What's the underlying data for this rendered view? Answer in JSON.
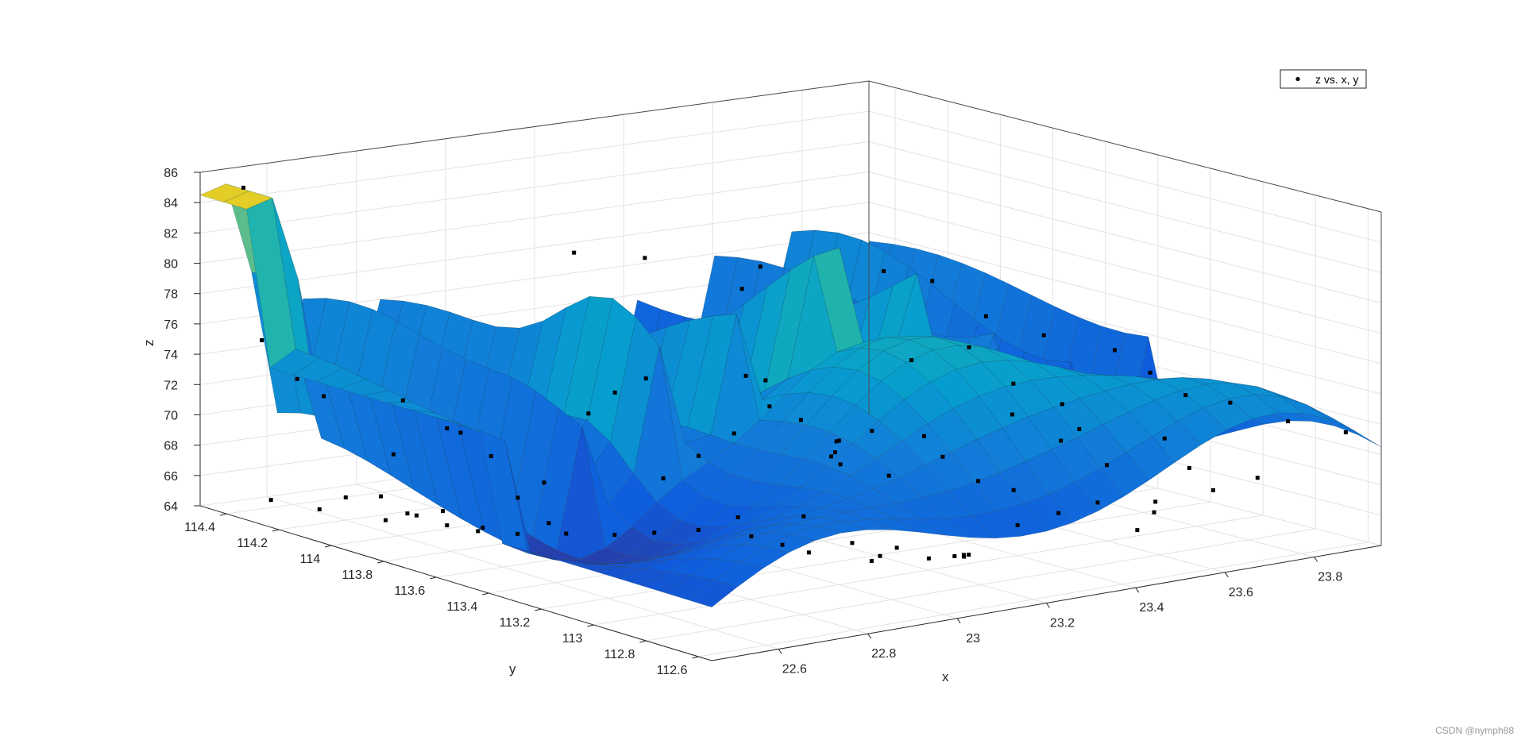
{
  "chart_data": {
    "type": "surface-scatter-3d",
    "title": "",
    "xlabel": "x",
    "ylabel": "y",
    "zlabel": "z",
    "xlim": [
      22.45,
      23.95
    ],
    "ylim": [
      112.55,
      114.5
    ],
    "zlim": [
      64,
      86
    ],
    "x_ticks": [
      "22.6",
      "22.8",
      "23",
      "23.2",
      "23.4",
      "23.6",
      "23.8"
    ],
    "y_ticks": [
      "112.6",
      "112.8",
      "113",
      "113.2",
      "113.4",
      "113.6",
      "113.8",
      "114",
      "114.2",
      "114.4"
    ],
    "z_ticks": [
      "64",
      "66",
      "68",
      "70",
      "72",
      "74",
      "76",
      "78",
      "80",
      "82",
      "84",
      "86"
    ],
    "grid": true,
    "colormap": "parula",
    "legend": {
      "position": "top-right",
      "entries": [
        "z vs. x, y"
      ]
    },
    "scatter_series": {
      "name": "z vs. x, y",
      "color": "#000000",
      "points": [
        [
          22.5,
          114.42,
          85.2
        ],
        [
          22.5,
          114.35,
          75.5
        ],
        [
          22.55,
          114.3,
          73.0
        ],
        [
          22.62,
          114.1,
          66.0
        ],
        [
          22.6,
          114.2,
          65.5
        ],
        [
          22.65,
          114.05,
          65.0
        ],
        [
          22.68,
          113.95,
          64.6
        ],
        [
          22.58,
          114.25,
          72.0
        ],
        [
          22.72,
          113.9,
          64.3
        ],
        [
          22.75,
          113.8,
          64.5
        ],
        [
          22.7,
          114.0,
          65.2
        ],
        [
          22.8,
          113.7,
          64.8
        ],
        [
          22.78,
          113.85,
          66.5
        ],
        [
          22.66,
          114.12,
          68.5
        ],
        [
          22.74,
          114.0,
          70.2
        ],
        [
          22.55,
          114.4,
          64.5
        ],
        [
          22.85,
          113.6,
          65.0
        ],
        [
          22.88,
          113.5,
          65.5
        ],
        [
          22.92,
          113.4,
          66.0
        ],
        [
          22.95,
          113.3,
          67.2
        ],
        [
          22.6,
          114.3,
          64.2
        ],
        [
          22.66,
          114.15,
          64.0
        ],
        [
          22.7,
          114.1,
          64.4
        ],
        [
          22.76,
          113.95,
          64.1
        ],
        [
          22.82,
          113.8,
          64.9
        ],
        [
          22.7,
          113.5,
          84.8
        ],
        [
          22.8,
          113.4,
          84.5
        ],
        [
          22.9,
          113.2,
          83.0
        ],
        [
          22.85,
          113.1,
          78.0
        ],
        [
          23.0,
          113.3,
          83.5
        ],
        [
          23.1,
          113.0,
          84.2
        ],
        [
          23.15,
          112.9,
          83.8
        ],
        [
          23.3,
          112.95,
          80.5
        ],
        [
          23.4,
          112.9,
          79.0
        ],
        [
          23.5,
          112.8,
          78.0
        ],
        [
          23.55,
          112.75,
          76.5
        ],
        [
          23.6,
          112.7,
          75.0
        ],
        [
          23.7,
          112.7,
          74.0
        ],
        [
          23.8,
          112.65,
          72.5
        ],
        [
          23.9,
          112.6,
          71.5
        ],
        [
          23.62,
          112.72,
          70.0
        ],
        [
          23.5,
          112.65,
          68.0
        ],
        [
          23.45,
          112.85,
          72.8
        ],
        [
          23.3,
          112.85,
          74.5
        ],
        [
          23.35,
          112.75,
          73.0
        ],
        [
          23.0,
          113.0,
          73.5
        ],
        [
          23.05,
          113.1,
          72.0
        ],
        [
          23.1,
          113.2,
          71.0
        ],
        [
          23.15,
          113.25,
          70.0
        ],
        [
          23.2,
          113.15,
          69.5
        ],
        [
          22.95,
          113.05,
          68.5
        ],
        [
          23.0,
          112.95,
          67.0
        ],
        [
          23.1,
          112.95,
          66.2
        ],
        [
          23.2,
          112.9,
          65.4
        ],
        [
          23.25,
          112.95,
          65.0
        ],
        [
          23.28,
          113.0,
          64.5
        ],
        [
          23.32,
          113.05,
          64.2
        ],
        [
          23.26,
          113.1,
          64.0
        ],
        [
          23.18,
          113.15,
          64.3
        ],
        [
          23.12,
          113.08,
          64.6
        ],
        [
          23.05,
          113.2,
          64.9
        ],
        [
          23.02,
          113.25,
          65.3
        ],
        [
          22.98,
          113.3,
          65.8
        ],
        [
          23.4,
          113.0,
          66.0
        ],
        [
          23.48,
          112.98,
          66.5
        ],
        [
          23.55,
          112.95,
          67.0
        ],
        [
          23.58,
          112.85,
          65.5
        ],
        [
          23.65,
          112.9,
          66.8
        ],
        [
          23.75,
          112.85,
          67.3
        ],
        [
          23.82,
          112.8,
          68.0
        ],
        [
          22.9,
          113.5,
          69.0
        ],
        [
          22.95,
          113.45,
          70.5
        ],
        [
          23.0,
          113.4,
          72.0
        ],
        [
          23.05,
          113.35,
          73.8
        ],
        [
          22.85,
          113.7,
          72.5
        ],
        [
          22.88,
          113.65,
          74.0
        ],
        [
          22.92,
          113.6,
          75.0
        ],
        [
          23.1,
          113.45,
          74.8
        ],
        [
          23.15,
          113.4,
          72.2
        ],
        [
          23.2,
          113.35,
          70.8
        ],
        [
          23.25,
          113.3,
          71.5
        ],
        [
          23.35,
          113.2,
          69.8
        ],
        [
          23.4,
          113.15,
          68.2
        ],
        [
          23.45,
          113.1,
          67.6
        ],
        [
          22.78,
          113.75,
          68.0
        ],
        [
          22.72,
          113.85,
          69.5
        ],
        [
          22.68,
          113.95,
          71.0
        ],
        [
          22.64,
          114.05,
          72.5
        ],
        [
          23.6,
          113.0,
          69.0
        ],
        [
          23.7,
          112.95,
          70.5
        ],
        [
          23.22,
          113.05,
          72.5
        ],
        [
          23.28,
          113.2,
          76.5
        ],
        [
          23.35,
          113.1,
          77.5
        ],
        [
          23.42,
          113.05,
          75.0
        ],
        [
          23.5,
          113.0,
          73.5
        ]
      ]
    }
  },
  "footer": {
    "watermark": "CSDN @nymph88"
  }
}
